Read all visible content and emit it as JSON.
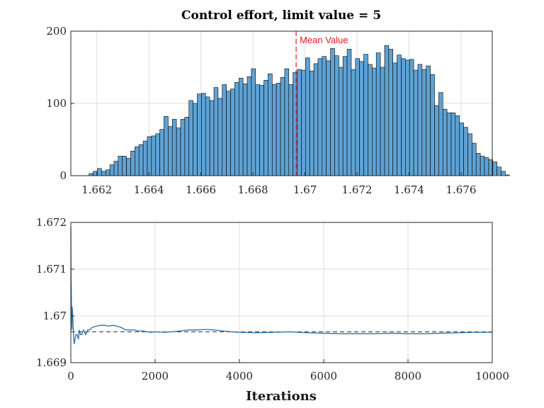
{
  "chart_data": [
    {
      "type": "bar",
      "subtype": "histogram",
      "title": "Control effort, limit value = 5",
      "xlabel": "",
      "ylabel": "",
      "xlim": [
        1.661,
        1.6772
      ],
      "ylim": [
        0,
        200
      ],
      "xticks": [
        1.662,
        1.664,
        1.666,
        1.668,
        1.67,
        1.672,
        1.674,
        1.676
      ],
      "xtick_labels": [
        "1.662",
        "1.664",
        "1.666",
        "1.668",
        "1.67",
        "1.672",
        "1.674",
        "1.676"
      ],
      "yticks": [
        0,
        100,
        200
      ],
      "ytick_labels": [
        "0",
        "100",
        "200"
      ],
      "grid": true,
      "bin_start": 1.6617,
      "bin_width": 0.00016,
      "counts": [
        3,
        6,
        10,
        6,
        8,
        15,
        20,
        27,
        27,
        24,
        34,
        40,
        43,
        48,
        54,
        55,
        58,
        64,
        82,
        68,
        78,
        66,
        78,
        81,
        104,
        100,
        113,
        114,
        109,
        104,
        122,
        107,
        126,
        117,
        120,
        129,
        135,
        127,
        137,
        148,
        126,
        125,
        132,
        141,
        126,
        128,
        136,
        148,
        126,
        143,
        147,
        146,
        163,
        145,
        155,
        162,
        165,
        159,
        176,
        166,
        150,
        165,
        175,
        147,
        162,
        158,
        168,
        154,
        149,
        170,
        150,
        180,
        175,
        156,
        167,
        162,
        160,
        161,
        146,
        154,
        147,
        152,
        140,
        97,
        115,
        92,
        87,
        87,
        83,
        73,
        67,
        58,
        45,
        31,
        27,
        25,
        22,
        19,
        12,
        6,
        1
      ],
      "bar_color": "#5fa2d4",
      "bar_edge_color": "#000000",
      "annotations": [
        {
          "text": "Mean Value",
          "x": 1.66966,
          "color": "#e31a1c",
          "style": "dashed vertical line"
        }
      ]
    },
    {
      "type": "line",
      "title": "",
      "xlabel": "Iterations",
      "ylabel": "",
      "xlim": [
        0,
        10000
      ],
      "ylim": [
        1.669,
        1.672
      ],
      "xticks": [
        0,
        2000,
        4000,
        6000,
        8000,
        10000
      ],
      "xtick_labels": [
        "0",
        "2000",
        "4000",
        "6000",
        "8000",
        "10000"
      ],
      "yticks": [
        1.669,
        1.67,
        1.671,
        1.672
      ],
      "ytick_labels": [
        "1.669",
        "1.67",
        "1.671",
        "1.672"
      ],
      "grid": true,
      "line_color": "#2a6fa8",
      "x": [
        1,
        5,
        10,
        15,
        20,
        25,
        30,
        40,
        50,
        60,
        70,
        80,
        100,
        120,
        150,
        180,
        200,
        230,
        260,
        300,
        350,
        400,
        450,
        500,
        600,
        700,
        800,
        900,
        1000,
        1100,
        1200,
        1300,
        1400,
        1500,
        1600,
        1700,
        1800,
        1900,
        2000,
        2200,
        2400,
        2600,
        2800,
        3000,
        3200,
        3400,
        3600,
        3800,
        4000,
        4400,
        4800,
        5200,
        5600,
        6000,
        6400,
        6800,
        7200,
        7600,
        8000,
        8400,
        8800,
        9200,
        9600,
        10000
      ],
      "y": [
        1.6719,
        1.6708,
        1.6706,
        1.6702,
        1.6699,
        1.6697,
        1.6702,
        1.6701,
        1.6699,
        1.6697,
        1.6695,
        1.6694,
        1.6695,
        1.6696,
        1.6696,
        1.6695,
        1.6697,
        1.6696,
        1.6696,
        1.6697,
        1.6696,
        1.6697,
        1.6697,
        1.66975,
        1.66978,
        1.6698,
        1.6698,
        1.66978,
        1.6698,
        1.66978,
        1.66975,
        1.6697,
        1.6697,
        1.6697,
        1.66968,
        1.66968,
        1.66966,
        1.66965,
        1.66966,
        1.66965,
        1.66966,
        1.66968,
        1.6697,
        1.6697,
        1.66971,
        1.6697,
        1.66968,
        1.66966,
        1.66965,
        1.66964,
        1.66965,
        1.66966,
        1.66964,
        1.66963,
        1.66962,
        1.66962,
        1.66962,
        1.66963,
        1.66962,
        1.66962,
        1.66963,
        1.66964,
        1.66965,
        1.66965
      ],
      "reference_line": {
        "y": 1.66966,
        "style": "dashed",
        "color": "#333333"
      }
    }
  ]
}
